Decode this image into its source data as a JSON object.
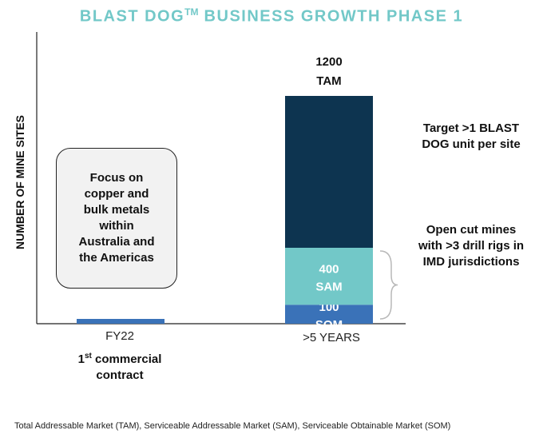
{
  "chart_data": {
    "type": "bar",
    "stacked": true,
    "title_main": "BLAST DOG",
    "title_tm": "TM",
    "title_rest": " BUSINESS GROWTH PHASE 1",
    "ylabel": "NUMBER OF MINE SITES",
    "categories": [
      "FY22",
      ">5 YEARS"
    ],
    "category_notes": {
      "fy22_sup": "st",
      "fy22_line1_start": "1",
      "fy22_line1_end": " commercial",
      "fy22_line2": "contract"
    },
    "fy22_bar": {
      "value": 1
    },
    "stack": [
      {
        "value": 100,
        "label": "100",
        "name": "SOM",
        "color": "#3a72b8"
      },
      {
        "value": 300,
        "label": "400",
        "name": "SAM",
        "color": "#72c8c8"
      },
      {
        "value": 800,
        "label": "1200",
        "name": "TAM",
        "color": "#0d3450"
      }
    ],
    "ylim": [
      0,
      1200
    ],
    "grid": false,
    "legend": "none"
  },
  "colors": {
    "title": "#72c8c8",
    "axis": "#222222",
    "fy22_bar": "#3a72b8"
  },
  "callout": {
    "lines": [
      "Focus on",
      "copper and",
      "bulk metals",
      "within",
      "Australia and",
      "the Americas"
    ]
  },
  "notes": {
    "tam_note": [
      "Target >1 BLAST",
      "DOG unit per site"
    ],
    "sam_note": [
      "Open cut mines",
      "with >3 drill rigs in",
      "IMD jurisdictions"
    ]
  },
  "footnote": "Total Addressable Market (TAM), Serviceable Addressable Market (SAM), Serviceable Obtainable Market (SOM)"
}
